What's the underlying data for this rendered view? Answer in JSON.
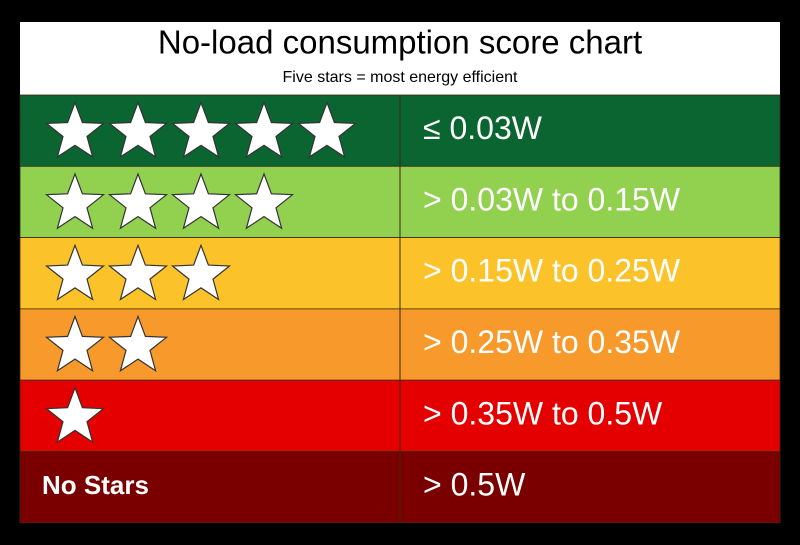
{
  "header": {
    "title": "No-load consumption score chart",
    "subtitle": "Five stars = most energy efficient"
  },
  "rows": [
    {
      "stars": 5,
      "range": "≤ 0.03W",
      "color": "#0b6530"
    },
    {
      "stars": 4,
      "range": "> 0.03W to 0.15W",
      "color": "#92d050"
    },
    {
      "stars": 3,
      "range": "> 0.15W to 0.25W",
      "color": "#fcc22a"
    },
    {
      "stars": 2,
      "range": "> 0.25W to 0.35W",
      "color": "#f8992b"
    },
    {
      "stars": 1,
      "range": "> 0.35W to 0.5W",
      "color": "#e50000"
    },
    {
      "label": "No Stars",
      "range": "> 0.5W",
      "color": "#7a0000"
    }
  ]
}
